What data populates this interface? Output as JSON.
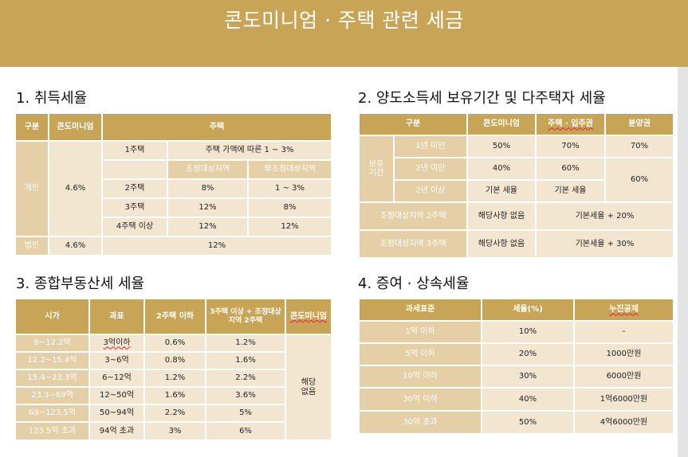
{
  "title": "콘도미니엄 · 주택 관련 세금",
  "section1": {
    "heading": "1. 취득세율",
    "h_gubun": "구분",
    "h_condo": "콘도미니엄",
    "h_house": "주택",
    "individual": "개인",
    "corporation": "법인",
    "condo_rate": "4.6%",
    "condo_rate_corp": "4.6%",
    "one_house": "1주택",
    "one_house_rate": "주택 가액에 따른 1 ~ 3%",
    "h_adjusted": "조정대상지역",
    "h_non_adjusted": "非조정대상지역",
    "rows": [
      {
        "label": "2주택",
        "adjusted": "8%",
        "non_adjusted": "1 ~ 3%"
      },
      {
        "label": "3주택",
        "adjusted": "12%",
        "non_adjusted": "8%"
      },
      {
        "label": "4주택 이상",
        "adjusted": "12%",
        "non_adjusted": "12%"
      }
    ],
    "corp_house_rate": "12%"
  },
  "section2": {
    "heading": "2. 양도소득세 보유기간 및 다주택자 세율",
    "headers": [
      "구분",
      "콘도미니엄",
      "주택 · 입주권",
      "분양권"
    ],
    "holding_label": "보유\n기간",
    "rows": [
      {
        "period": "1년 미만",
        "condo": "50%",
        "house": "70%",
        "presale": "70%"
      },
      {
        "period": "2년 미만",
        "condo": "40%",
        "house": "60%"
      },
      {
        "period": "2년 이상",
        "condo": "기본 세율",
        "house": "기본 세율"
      }
    ],
    "presale_2plus": "60%",
    "adj_2": {
      "label": "조정대상지역 2주택",
      "condo": "해당사항 없음",
      "rate": "기본세율 + 20%"
    },
    "adj_3": {
      "label": "조정대상지역 3주택",
      "condo": "해당사항 없음",
      "rate": "기본세율 + 30%"
    }
  },
  "section3": {
    "heading": "3. 종합부동산세 세율",
    "headers": [
      "시가",
      "과표",
      "2주택 이하",
      "3주택 이상 + 조정대상지역 2주택",
      "콘도미니엄"
    ],
    "rows": [
      {
        "price": "8~12.2억",
        "base": "3억이하",
        "two": "0.6%",
        "three": "1.2%"
      },
      {
        "price": "12.2~15.4억",
        "base": "3~6억",
        "two": "0.8%",
        "three": "1.6%"
      },
      {
        "price": "15.4~23.3억",
        "base": "6~12억",
        "two": "1.2%",
        "three": "2.2%"
      },
      {
        "price": "23.3~69억",
        "base": "12~50억",
        "two": "1.6%",
        "three": "3.6%"
      },
      {
        "price": "69~123.5억",
        "base": "50~94억",
        "two": "2.2%",
        "three": "5%"
      },
      {
        "price": "123.5억 초과",
        "base": "94억 초과",
        "two": "3%",
        "three": "6%"
      }
    ],
    "condo_value": "해당\n없음"
  },
  "section4": {
    "heading": "4. 증여 · 상속세율",
    "headers": [
      "과세표준",
      "세율(%)",
      "누진공제"
    ],
    "rows": [
      {
        "base": "1억 이하",
        "rate": "10%",
        "deduction": "-"
      },
      {
        "base": "5억 이하",
        "rate": "20%",
        "deduction": "1000만원"
      },
      {
        "base": "10억 이하",
        "rate": "30%",
        "deduction": "6000만원"
      },
      {
        "base": "30억 이하",
        "rate": "40%",
        "deduction": "1억6000만원"
      },
      {
        "base": "30억 초과",
        "rate": "50%",
        "deduction": "4억6000만원"
      }
    ]
  }
}
